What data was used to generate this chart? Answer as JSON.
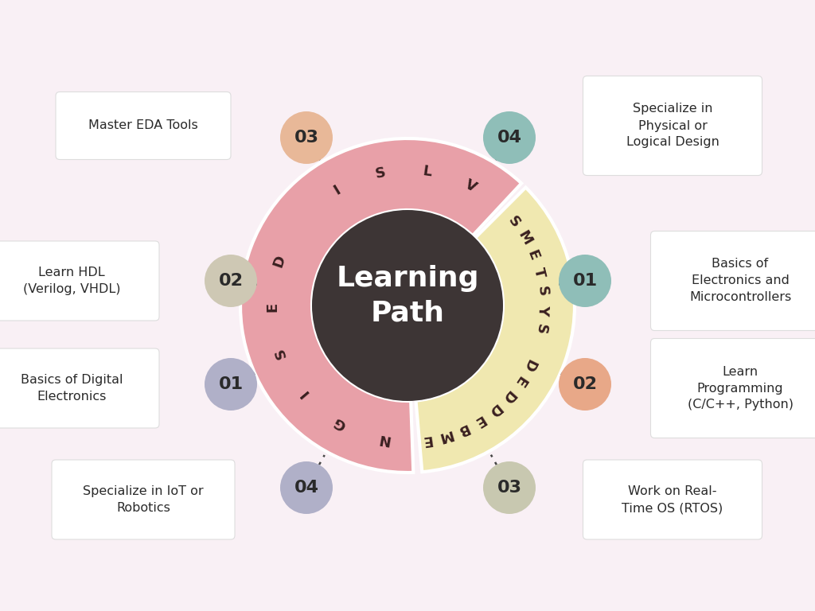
{
  "bg_color": "#f9f0f5",
  "title": "Learning\nPath",
  "title_color": "#ffffff",
  "vlsi_color": "#e8a0a8",
  "embedded_color": "#f0e8b0",
  "vlsi_label": "VLSI DESIGN",
  "embedded_label": "EMBEDDED SYSTEMS",
  "inner_circle_color": "#3d3535",
  "nodes": [
    {
      "label": "03",
      "color": "#e8b898",
      "text": "Master EDA Tools",
      "nx": 0.385,
      "ny": 0.795,
      "bx": 0.175,
      "by": 0.81,
      "bw": 0.2,
      "bh": 0.08
    },
    {
      "label": "02",
      "color": "#cec8b4",
      "text": "Learn HDL\n(Verilog, VHDL)",
      "nx": 0.29,
      "ny": 0.56,
      "bx": 0.095,
      "by": 0.56,
      "bw": 0.2,
      "bh": 0.09
    },
    {
      "label": "01",
      "color": "#b0b0c8",
      "text": "Basics of Digital\nElectronics",
      "nx": 0.295,
      "ny": 0.38,
      "bx": 0.095,
      "by": 0.375,
      "bw": 0.2,
      "bh": 0.09
    },
    {
      "label": "04",
      "color": "#b0b0c8",
      "text": "Specialize in IoT or\nRobotics",
      "nx": 0.385,
      "ny": 0.175,
      "bx": 0.175,
      "by": 0.16,
      "bw": 0.21,
      "bh": 0.09
    },
    {
      "label": "04",
      "color": "#8fbeб8",
      "text": "Specialize in\nPhysical or\nLogical Design",
      "nx": 0.618,
      "ny": 0.795,
      "bx": 0.83,
      "by": 0.81,
      "bw": 0.21,
      "bh": 0.12
    },
    {
      "label": "01",
      "color": "#8fbeб8",
      "text": "Basics of\nElectronics and\nMicrocontrollers",
      "nx": 0.715,
      "ny": 0.56,
      "bx": 0.905,
      "by": 0.56,
      "bw": 0.21,
      "bh": 0.12
    },
    {
      "label": "02",
      "color": "#e8a888",
      "text": "Learn\nProgramming\n(C/C++, Python)",
      "nx": 0.715,
      "ny": 0.375,
      "bx": 0.905,
      "by": 0.375,
      "bw": 0.21,
      "bh": 0.12
    },
    {
      "label": "03",
      "color": "#c8c8b0",
      "text": "Work on Real-\nTime OS (RTOS)",
      "nx": 0.618,
      "ny": 0.175,
      "bx": 0.83,
      "by": 0.16,
      "bw": 0.21,
      "bh": 0.09
    }
  ]
}
